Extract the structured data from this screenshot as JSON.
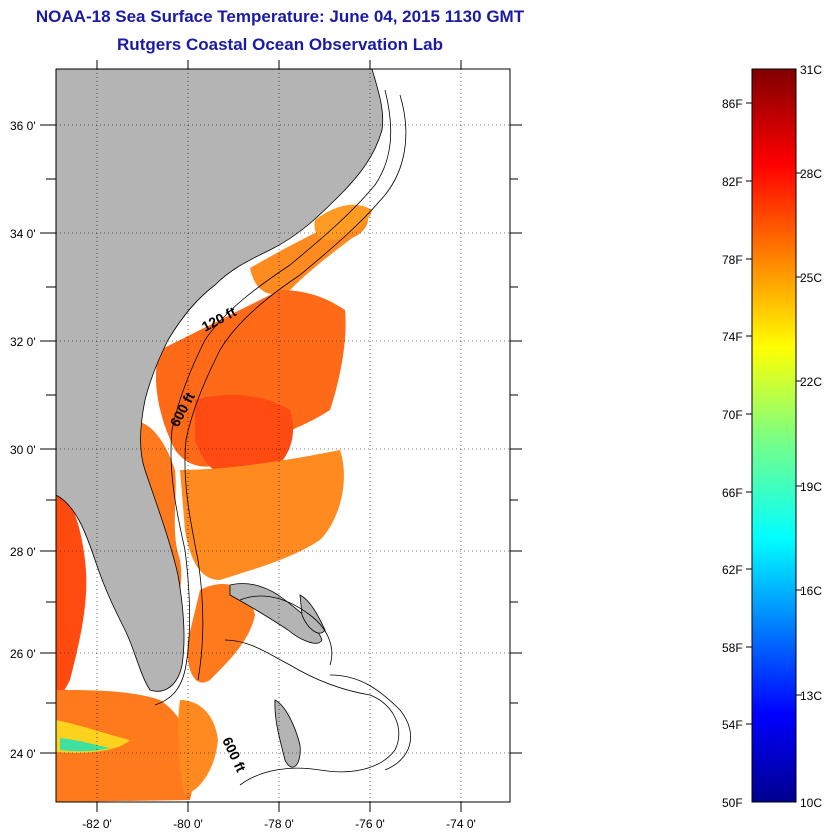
{
  "title": "NOAA-18 Sea Surface Temperature:  June 04, 2015 1130 GMT",
  "subtitle": "Rutgers Coastal Ocean Observation Lab",
  "map": {
    "lon_labels": [
      "-82 0'",
      "-80 0'",
      "-78 0'",
      "-76 0'",
      "-74 0'"
    ],
    "lat_labels": [
      "36 0'",
      "34 0'",
      "32 0'",
      "30 0'",
      "28 0'",
      "26 0'",
      "24 0'"
    ],
    "contour_labels": [
      "120 ft",
      "600 ft",
      "600 ft"
    ],
    "colors": {
      "land": "#b4b4b4",
      "sst_warm": "#ff5a14",
      "sst_orange": "#ff7a1c"
    }
  },
  "colorbar": {
    "fahrenheit_labels": [
      "86F",
      "82F",
      "78F",
      "74F",
      "70F",
      "66F",
      "62F",
      "58F",
      "54F",
      "50F"
    ],
    "celsius_labels": [
      "31C",
      "28C",
      "25C",
      "22C",
      "19C",
      "16C",
      "13C",
      "10C"
    ]
  }
}
